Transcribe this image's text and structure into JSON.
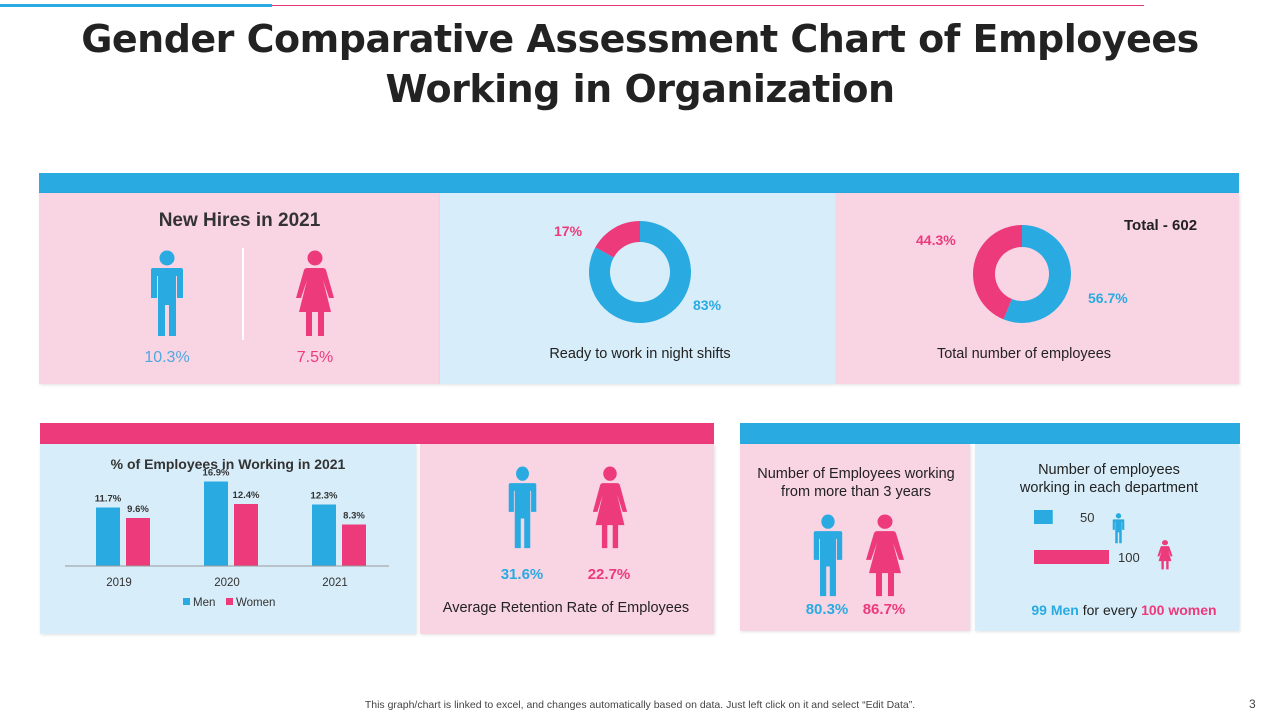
{
  "title_line1": "Gender Comparative Assessment Chart of Employees",
  "title_line2": "Working in Organization",
  "colors": {
    "men": "#29abe2",
    "women": "#ec3a7b",
    "pink_panel": "#f9d4e3",
    "blue_panel": "#d7edf9"
  },
  "new_hires": {
    "title": "New Hires in 2021",
    "men": "10.3%",
    "women": "7.5%"
  },
  "night_shifts": {
    "women_pct": "17%",
    "men_pct": "83%",
    "label": "Ready to work in night shifts"
  },
  "total_employees": {
    "total": "Total - 602",
    "women_pct": "44.3%",
    "men_pct": "56.7%",
    "label": "Total number of employees"
  },
  "working_chart_title": "% of Employees in Working in 2021",
  "retention": {
    "men": "31.6%",
    "women": "22.7%",
    "label": "Average Retention Rate of Employees"
  },
  "tenure": {
    "label_line1": "Number of Employees working",
    "label_line2": "from more than 3 years",
    "men": "80.3%",
    "women": "86.7%"
  },
  "department": {
    "label_line1": "Number of employees",
    "label_line2": "working in each department",
    "men_value": "50",
    "women_value": "100",
    "ratio_men": "99 Men",
    "ratio_mid": " for every ",
    "ratio_women": "100 women"
  },
  "footer": "This graph/chart is linked to excel, and changes automatically based on data. Just left click on it and select “Edit Data”.",
  "page_number": "3",
  "chart_data": [
    {
      "type": "pie",
      "title": "",
      "labels": [
        "Women",
        "Men"
      ],
      "values": [
        17,
        83
      ],
      "caption": "Ready to work in night shifts"
    },
    {
      "type": "pie",
      "title": "Total - 602",
      "labels": [
        "Women",
        "Men"
      ],
      "values": [
        44.3,
        56.7
      ],
      "caption": "Total number of employees"
    },
    {
      "type": "bar",
      "title": "% of Employees in Working in 2021",
      "categories": [
        "2019",
        "2020",
        "2021"
      ],
      "series": [
        {
          "name": "Men",
          "values": [
            11.7,
            16.9,
            12.3
          ],
          "labels": [
            "11.7%",
            "16.9%",
            "12.3%"
          ]
        },
        {
          "name": "Women",
          "values": [
            9.6,
            12.4,
            8.3
          ],
          "labels": [
            "9.6%",
            "12.4%",
            "8.3%"
          ]
        }
      ],
      "xlabel": "",
      "ylabel": "",
      "ylim": [
        0,
        20
      ],
      "legend": "bottom",
      "grid": false
    },
    {
      "type": "bar",
      "title": "Number of employees working in each department",
      "orientation": "horizontal",
      "categories": [
        "Men",
        "Women"
      ],
      "values": [
        50,
        100
      ]
    }
  ]
}
